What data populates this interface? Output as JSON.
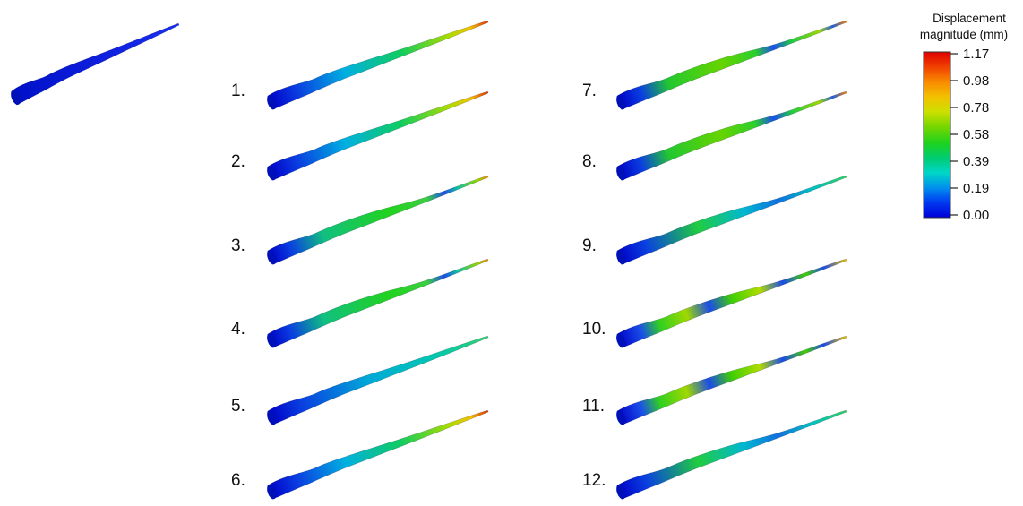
{
  "legend": {
    "title_line1": "Displacement",
    "title_line2": "magnitude (mm)",
    "ticks": [
      "1.17",
      "0.98",
      "0.78",
      "0.58",
      "0.39",
      "0.19",
      "0.00"
    ],
    "colors": [
      "#0000d8",
      "#0038f0",
      "#0090ee",
      "#00d6c8",
      "#00cc72",
      "#1ed21e",
      "#78d600",
      "#cce000",
      "#f4c000",
      "#f88a00",
      "#f04000",
      "#e00000"
    ]
  },
  "undeformed": {
    "display": "all-blue (0.00 mm)"
  },
  "modes": [
    {
      "label": "1.",
      "pattern": "tip-bending"
    },
    {
      "label": "2.",
      "pattern": "tip-bending"
    },
    {
      "label": "3.",
      "pattern": "second-bending"
    },
    {
      "label": "4.",
      "pattern": "second-bending"
    },
    {
      "label": "5.",
      "pattern": "edgewise"
    },
    {
      "label": "6.",
      "pattern": "tip-bending"
    },
    {
      "label": "7.",
      "pattern": "third-bending"
    },
    {
      "label": "8.",
      "pattern": "third-bending"
    },
    {
      "label": "9.",
      "pattern": "torsion"
    },
    {
      "label": "10.",
      "pattern": "fourth-bending"
    },
    {
      "label": "11.",
      "pattern": "fourth-bending"
    },
    {
      "label": "12.",
      "pattern": "torsion"
    }
  ]
}
